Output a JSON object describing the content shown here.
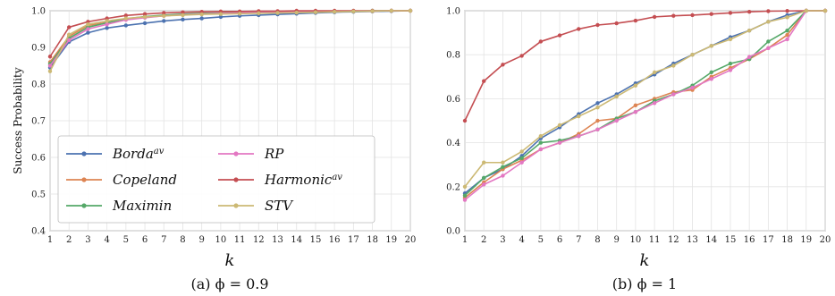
{
  "figure": {
    "shared_xlabel": "k",
    "ylabel_left": "Success Probability"
  },
  "chart_data": [
    {
      "type": "line",
      "panel": "a",
      "caption": "(a) ϕ = 0.9",
      "xlabel": "k",
      "ylabel": "Success Probability",
      "x": [
        1,
        2,
        3,
        4,
        5,
        6,
        7,
        8,
        9,
        10,
        11,
        12,
        13,
        14,
        15,
        16,
        17,
        18,
        19,
        20
      ],
      "xlim": [
        1,
        20
      ],
      "ylim": [
        0.4,
        1.0
      ],
      "yticks": [
        0.4,
        0.5,
        0.6,
        0.7,
        0.8,
        0.9,
        1.0
      ],
      "ytick_labels": [
        "0.4",
        "0.5",
        "0.6",
        "0.7",
        "0.8",
        "0.9",
        "1.0"
      ],
      "grid": true,
      "legend_position": "lower-left",
      "series": [
        {
          "name": "Borda",
          "sup": "av",
          "color": "#4c72b0",
          "values": [
            0.845,
            0.915,
            0.94,
            0.953,
            0.96,
            0.966,
            0.972,
            0.976,
            0.979,
            0.983,
            0.986,
            0.988,
            0.99,
            0.992,
            0.994,
            0.996,
            0.997,
            0.998,
            0.999,
            1.0
          ]
        },
        {
          "name": "Copeland",
          "sup": "",
          "color": "#dd8452",
          "values": [
            0.86,
            0.93,
            0.96,
            0.968,
            0.976,
            0.982,
            0.986,
            0.989,
            0.991,
            0.993,
            0.994,
            0.995,
            0.996,
            0.997,
            0.998,
            0.998,
            0.999,
            0.999,
            1.0,
            1.0
          ]
        },
        {
          "name": "Maximin",
          "sup": "",
          "color": "#55a868",
          "values": [
            0.855,
            0.925,
            0.955,
            0.967,
            0.978,
            0.984,
            0.988,
            0.991,
            0.993,
            0.994,
            0.995,
            0.996,
            0.997,
            0.998,
            0.998,
            0.999,
            0.999,
            1.0,
            1.0,
            1.0
          ]
        },
        {
          "name": "RP",
          "sup": "",
          "color": "#e377c2",
          "values": [
            0.85,
            0.92,
            0.95,
            0.963,
            0.975,
            0.981,
            0.986,
            0.989,
            0.991,
            0.993,
            0.994,
            0.995,
            0.996,
            0.997,
            0.998,
            0.998,
            0.999,
            0.999,
            1.0,
            1.0
          ]
        },
        {
          "name": "Harmonic",
          "sup": "av",
          "color": "#c44e52",
          "values": [
            0.875,
            0.955,
            0.97,
            0.979,
            0.987,
            0.991,
            0.994,
            0.996,
            0.997,
            0.998,
            0.998,
            0.999,
            0.999,
            1.0,
            1.0,
            1.0,
            1.0,
            1.0,
            1.0,
            1.0
          ]
        },
        {
          "name": "STV",
          "sup": "",
          "color": "#ccb974",
          "values": [
            0.835,
            0.935,
            0.963,
            0.972,
            0.979,
            0.983,
            0.986,
            0.988,
            0.99,
            0.991,
            0.992,
            0.993,
            0.994,
            0.995,
            0.996,
            0.997,
            0.998,
            0.999,
            1.0,
            1.0
          ]
        }
      ]
    },
    {
      "type": "line",
      "panel": "b",
      "caption": "(b) ϕ = 1",
      "xlabel": "k",
      "ylabel": "",
      "x": [
        1,
        2,
        3,
        4,
        5,
        6,
        7,
        8,
        9,
        10,
        11,
        12,
        13,
        14,
        15,
        16,
        17,
        18,
        19,
        20
      ],
      "xlim": [
        1,
        20
      ],
      "ylim": [
        0.0,
        1.0
      ],
      "yticks": [
        0.0,
        0.2,
        0.4,
        0.6,
        0.8,
        1.0
      ],
      "ytick_labels": [
        "0.0",
        "0.2",
        "0.4",
        "0.6",
        "0.8",
        "1.0"
      ],
      "grid": true,
      "series": [
        {
          "name": "Borda",
          "sup": "av",
          "color": "#4c72b0",
          "values": [
            0.17,
            0.24,
            0.28,
            0.34,
            0.42,
            0.47,
            0.53,
            0.58,
            0.62,
            0.67,
            0.71,
            0.76,
            0.8,
            0.84,
            0.88,
            0.91,
            0.95,
            0.98,
            1.0,
            1.0
          ]
        },
        {
          "name": "Copeland",
          "sup": "",
          "color": "#dd8452",
          "values": [
            0.15,
            0.22,
            0.28,
            0.32,
            0.37,
            0.4,
            0.44,
            0.5,
            0.51,
            0.57,
            0.6,
            0.63,
            0.64,
            0.7,
            0.74,
            0.78,
            0.83,
            0.89,
            1.0,
            1.0
          ]
        },
        {
          "name": "Maximin",
          "sup": "",
          "color": "#55a868",
          "values": [
            0.16,
            0.24,
            0.29,
            0.33,
            0.4,
            0.41,
            0.43,
            0.46,
            0.51,
            0.54,
            0.59,
            0.62,
            0.66,
            0.72,
            0.76,
            0.78,
            0.86,
            0.91,
            1.0,
            1.0
          ]
        },
        {
          "name": "RP",
          "sup": "",
          "color": "#e377c2",
          "values": [
            0.14,
            0.21,
            0.25,
            0.31,
            0.37,
            0.4,
            0.43,
            0.46,
            0.5,
            0.54,
            0.58,
            0.62,
            0.65,
            0.69,
            0.73,
            0.79,
            0.83,
            0.87,
            1.0,
            1.0
          ]
        },
        {
          "name": "Harmonic",
          "sup": "av",
          "color": "#c44e52",
          "values": [
            0.5,
            0.68,
            0.755,
            0.795,
            0.86,
            0.888,
            0.917,
            0.935,
            0.943,
            0.955,
            0.972,
            0.977,
            0.98,
            0.985,
            0.99,
            0.995,
            0.998,
            0.999,
            1.0,
            1.0
          ]
        },
        {
          "name": "STV",
          "sup": "",
          "color": "#ccb974",
          "values": [
            0.2,
            0.31,
            0.31,
            0.36,
            0.43,
            0.48,
            0.52,
            0.56,
            0.61,
            0.66,
            0.72,
            0.75,
            0.8,
            0.84,
            0.87,
            0.91,
            0.95,
            0.97,
            1.0,
            1.0
          ]
        }
      ]
    }
  ]
}
